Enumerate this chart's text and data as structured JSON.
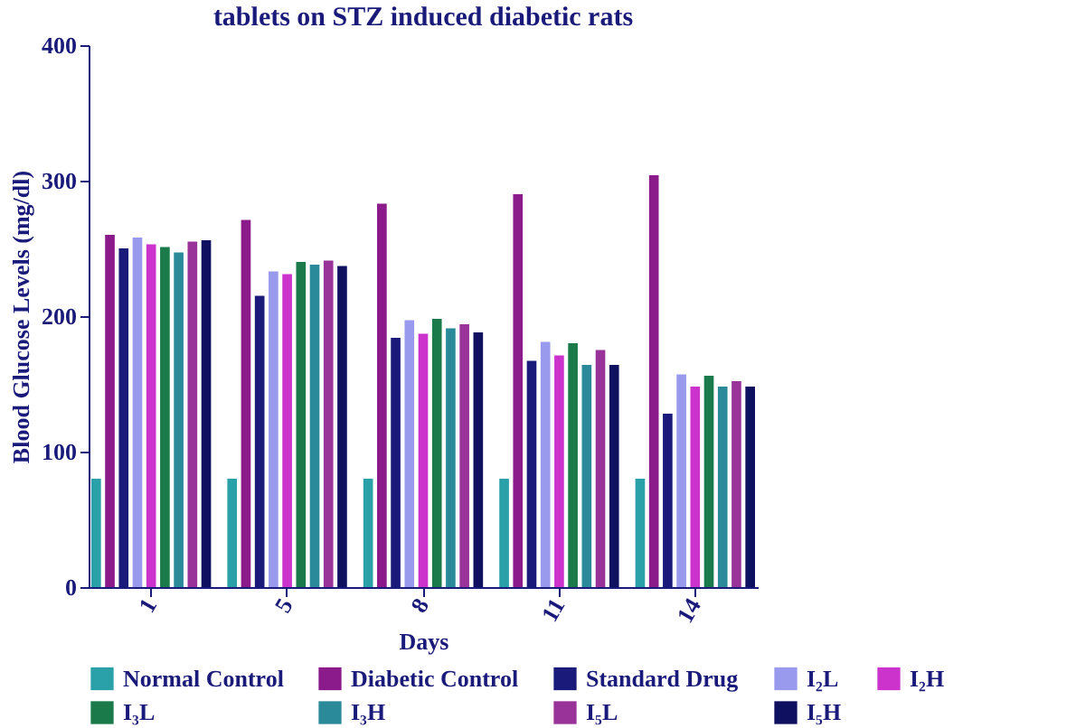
{
  "chart_data": {
    "type": "bar",
    "title": "tablets on STZ induced diabetic rats",
    "xlabel": "Days",
    "ylabel": "Blood Glucose Levels (mg/dl)",
    "categories": [
      "1",
      "5",
      "8",
      "11",
      "14"
    ],
    "ylim": [
      0,
      400
    ],
    "yticks": [
      0,
      100,
      200,
      300,
      400
    ],
    "grid": false,
    "legend": "bottom",
    "series": [
      {
        "name": "Normal Control",
        "color": "#2aa0a8",
        "values": [
          80,
          80,
          80,
          80,
          80
        ]
      },
      {
        "name": "Diabetic Control",
        "color": "#8b1a8b",
        "values": [
          260,
          271,
          283,
          290,
          304
        ]
      },
      {
        "name": "Standard Drug",
        "color": "#1a1a7a",
        "values": [
          250,
          215,
          184,
          167,
          128
        ]
      },
      {
        "name": "I₂L",
        "color": "#9999ee",
        "values": [
          258,
          233,
          197,
          181,
          157
        ]
      },
      {
        "name": "I₂H",
        "color": "#cc33cc",
        "values": [
          253,
          231,
          187,
          171,
          148
        ]
      },
      {
        "name": "I₃L",
        "color": "#1a7a4a",
        "values": [
          251,
          240,
          198,
          180,
          156
        ]
      },
      {
        "name": "I₃H",
        "color": "#2a8a9a",
        "values": [
          247,
          238,
          191,
          164,
          148
        ]
      },
      {
        "name": "I₅L",
        "color": "#993399",
        "values": [
          255,
          241,
          194,
          175,
          152
        ]
      },
      {
        "name": "I₅H",
        "color": "#101060",
        "values": [
          256,
          237,
          188,
          164,
          148
        ]
      }
    ]
  }
}
